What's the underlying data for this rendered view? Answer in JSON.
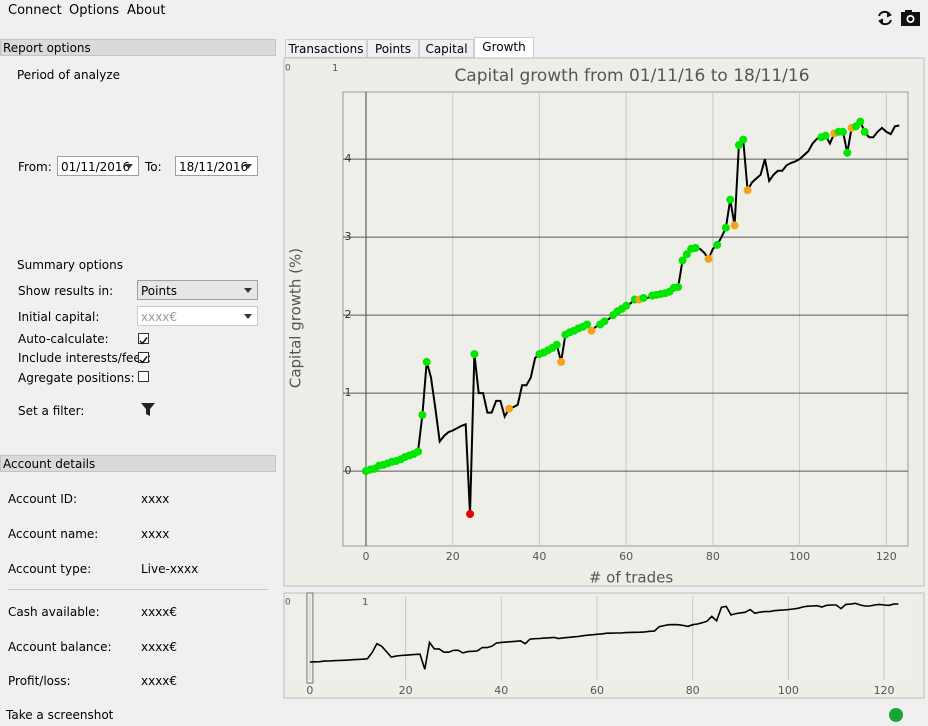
{
  "menu": [
    "Connect",
    "Options",
    "About"
  ],
  "report_options": {
    "title": "Report options",
    "period_label": "Period of analyze",
    "from_label": "From:",
    "from_date": "01/11/2016",
    "to_label": "To:",
    "to_date": "18/11/2016",
    "summary_label": "Summary options",
    "show_results_label": "Show results in:",
    "show_results_value": "Points",
    "initial_capital_label": "Initial capital:",
    "initial_capital_placeholder": "xxxx€",
    "auto_calculate_label": "Auto-calculate:",
    "auto_calculate": true,
    "include_fees_label": "Include interests/fees:",
    "include_fees": true,
    "aggregate_label": "Agregate positions:",
    "aggregate": false,
    "filter_label": "Set a filter:"
  },
  "account_details": {
    "title": "Account details",
    "rows": [
      [
        "Account ID:",
        "xxxx"
      ],
      [
        "Account name:",
        "xxxx"
      ],
      [
        "Account type:",
        "Live-xxxx"
      ],
      [
        "Cash available:",
        "xxxx€"
      ],
      [
        "Account balance:",
        "xxxx€"
      ],
      [
        "Profit/loss:",
        "xxxx€"
      ]
    ]
  },
  "tabs": [
    "Transactions",
    "Points",
    "Capital",
    "Growth"
  ],
  "active_tab": 3,
  "status": "Take a screenshot",
  "chart_data": [
    {
      "type": "line",
      "title": "Capital growth from 01/11/16 to 18/11/16",
      "x_label": "# of trades",
      "y_label": "Capital growth (%)",
      "corner_labels": [
        "0",
        "1"
      ],
      "color": "#000000",
      "x": [
        0,
        1,
        2,
        3,
        4,
        5,
        6,
        7,
        8,
        9,
        10,
        11,
        12,
        13,
        14,
        15,
        16,
        17,
        18,
        19,
        20,
        21,
        22,
        23,
        24,
        25,
        26,
        27,
        28,
        29,
        30,
        31,
        32,
        33,
        34,
        35,
        36,
        37,
        38,
        39,
        40,
        41,
        42,
        43,
        44,
        45,
        46,
        47,
        48,
        49,
        50,
        51,
        52,
        53,
        54,
        55,
        56,
        57,
        58,
        59,
        60,
        61,
        62,
        63,
        64,
        65,
        66,
        67,
        68,
        69,
        70,
        71,
        72,
        73,
        74,
        75,
        76,
        77,
        78,
        79,
        80,
        81,
        82,
        83,
        84,
        85,
        86,
        87,
        88,
        89,
        90,
        91,
        92,
        93,
        94,
        95,
        96,
        97,
        98,
        99,
        100,
        101,
        102,
        103,
        104,
        105,
        106,
        107,
        108,
        109,
        110,
        111,
        112,
        113,
        114,
        115,
        116,
        117,
        118,
        119,
        120,
        121,
        122,
        123
      ],
      "values": [
        0.0,
        0.02,
        0.03,
        0.07,
        0.08,
        0.1,
        0.12,
        0.13,
        0.15,
        0.18,
        0.2,
        0.22,
        0.25,
        0.72,
        1.4,
        1.2,
        0.8,
        0.38,
        0.45,
        0.5,
        0.52,
        0.55,
        0.58,
        0.6,
        -0.55,
        1.5,
        1.0,
        1.0,
        0.75,
        0.75,
        0.9,
        0.9,
        0.7,
        0.8,
        0.82,
        0.85,
        1.1,
        1.1,
        1.2,
        1.45,
        1.5,
        1.52,
        1.55,
        1.58,
        1.62,
        1.4,
        1.75,
        1.78,
        1.8,
        1.83,
        1.85,
        1.88,
        1.8,
        1.85,
        1.88,
        1.92,
        1.95,
        2.0,
        2.05,
        2.08,
        2.12,
        2.15,
        2.2,
        2.2,
        2.22,
        2.22,
        2.25,
        2.26,
        2.27,
        2.28,
        2.3,
        2.35,
        2.36,
        2.7,
        2.78,
        2.85,
        2.86,
        2.85,
        2.8,
        2.72,
        2.85,
        2.9,
        3.0,
        3.12,
        3.48,
        3.15,
        4.18,
        4.25,
        3.6,
        3.7,
        3.75,
        3.8,
        4.0,
        3.72,
        3.8,
        3.85,
        3.85,
        3.92,
        3.95,
        3.97,
        4.0,
        4.05,
        4.1,
        4.2,
        4.26,
        4.28,
        4.3,
        4.2,
        4.33,
        4.35,
        4.35,
        4.08,
        4.4,
        4.42,
        4.48,
        4.35,
        4.28,
        4.28,
        4.35,
        4.4,
        4.35,
        4.32,
        4.42,
        4.43
      ],
      "point_colors": [
        "#00e600",
        "#00e600",
        "#00e600",
        "#00e600",
        "#00e600",
        "#00e600",
        "#00e600",
        "#00e600",
        "#00e600",
        "#00e600",
        "#00e600",
        "#00e600",
        "#00e600",
        "#00e600",
        "#00e600",
        null,
        null,
        null,
        null,
        null,
        null,
        null,
        null,
        null,
        "#e60000",
        "#00e600",
        null,
        null,
        null,
        null,
        null,
        null,
        null,
        "#f5a31a",
        null,
        null,
        null,
        null,
        null,
        null,
        "#00e600",
        "#00e600",
        "#00e600",
        "#00e600",
        "#00e600",
        "#f5a31a",
        "#00e600",
        "#00e600",
        "#00e600",
        "#00e600",
        "#00e600",
        "#00e600",
        "#f5a31a",
        null,
        "#00e600",
        "#00e600",
        null,
        "#00e600",
        "#00e600",
        "#00e600",
        "#00e600",
        null,
        "#00e600",
        "#f5a31a",
        "#00e600",
        null,
        "#00e600",
        "#00e600",
        "#00e600",
        "#00e600",
        "#00e600",
        "#00e600",
        "#00e600",
        "#00e600",
        "#00e600",
        "#00e600",
        "#00e600",
        null,
        null,
        "#f5a31a",
        null,
        "#00e600",
        null,
        "#00e600",
        "#00e600",
        "#f5a31a",
        "#00e600",
        "#00e600",
        "#f5a31a",
        null,
        null,
        null,
        null,
        null,
        null,
        null,
        null,
        null,
        null,
        null,
        null,
        null,
        null,
        null,
        null,
        "#00e600",
        "#00e600",
        null,
        "#f5a31a",
        "#00e600",
        "#00e600",
        "#00e600",
        "#f5a31a",
        "#00e600",
        "#00e600",
        "#00e600",
        null,
        null,
        null,
        null,
        null,
        null,
        null,
        null,
        null
      ],
      "xlim": [
        -5.3,
        125
      ],
      "ylim": [
        -0.96,
        4.86
      ],
      "xticks": [
        0,
        20,
        40,
        60,
        80,
        100,
        120
      ],
      "yticks": [
        0,
        1,
        2,
        3,
        4
      ],
      "grid": true
    },
    {
      "type": "line",
      "corner_labels": [
        "0",
        "1"
      ],
      "color": "#000000",
      "xlim": [
        -5,
        125
      ],
      "ylim": [
        -1.37,
        5.04
      ],
      "xticks": [
        0,
        20,
        40,
        60,
        80,
        100,
        120
      ],
      "grid": true
    }
  ]
}
